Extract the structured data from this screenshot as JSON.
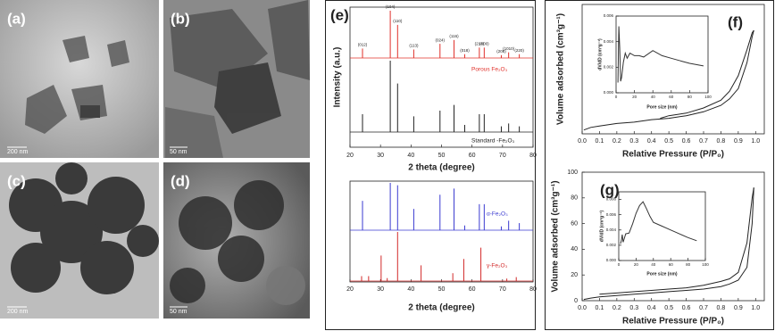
{
  "images": [
    {
      "label": "(a)",
      "scale_bar": "200 nm"
    },
    {
      "label": "(b)",
      "scale_bar": "50 nm"
    },
    {
      "label": "(c)",
      "scale_bar": "200 nm"
    },
    {
      "label": "(d)",
      "scale_bar": "50 nm"
    }
  ],
  "chart_data": [
    {
      "type": "stick",
      "panel_label": "(e)",
      "xlabel": "2 theta (degree)",
      "ylabel": "Intensity (a.u.)",
      "xlim": [
        20,
        80
      ],
      "xticks": [
        20,
        30,
        40,
        50,
        60,
        70,
        80
      ],
      "ylim": [
        0,
        100
      ],
      "series": [
        {
          "name": "Porous Fe₂O₃",
          "color": "#e0302a",
          "x": [
            24.1,
            33.2,
            35.6,
            40.9,
            49.5,
            54.1,
            57.6,
            62.4,
            64.0,
            69.6,
            72.0,
            75.5
          ],
          "values": [
            20,
            100,
            70,
            18,
            30,
            38,
            8,
            22,
            22,
            6,
            12,
            8
          ],
          "peak_labels": [
            "(012)",
            "(104)",
            "(110)",
            "(113)",
            "(024)",
            "(116)",
            "(018)",
            "(214)",
            "(300)",
            "(208)",
            "(1010)",
            "(220)"
          ]
        },
        {
          "name": "Standard -Fe₂O₃",
          "color": "#222222",
          "x": [
            24.1,
            33.2,
            35.6,
            40.9,
            49.5,
            54.1,
            57.6,
            62.4,
            64.0,
            69.6,
            72.0,
            75.5
          ],
          "values": [
            25,
            100,
            68,
            22,
            30,
            38,
            10,
            25,
            25,
            8,
            12,
            8
          ]
        }
      ]
    },
    {
      "type": "stick",
      "xlabel": "2 theta (degree)",
      "xlim": [
        20,
        80
      ],
      "xticks": [
        20,
        30,
        40,
        50,
        60,
        70,
        80
      ],
      "ylim": [
        0,
        100
      ],
      "series": [
        {
          "name": "α-Fe₂O₃",
          "color": "#3a3ad0",
          "x": [
            24.1,
            33.2,
            35.6,
            40.9,
            49.5,
            54.1,
            57.6,
            62.4,
            64.0,
            69.6,
            72.0,
            75.5
          ],
          "values": [
            62,
            100,
            95,
            45,
            75,
            88,
            10,
            55,
            55,
            8,
            20,
            15
          ]
        },
        {
          "name": "γ-Fe₂O₃",
          "color": "#d22a2a",
          "x": [
            23.8,
            26.1,
            30.2,
            32.2,
            35.6,
            43.3,
            53.7,
            57.3,
            62.9,
            71.4,
            74.5
          ],
          "values": [
            10,
            10,
            52,
            6,
            100,
            32,
            16,
            45,
            68,
            5,
            8
          ]
        }
      ]
    },
    {
      "type": "line",
      "panel_label": "(f)",
      "xlabel": "Relative Pressure (P/P₀)",
      "ylabel": "Volume adsorbed (cm³g⁻¹)",
      "xlim": [
        0,
        1.05
      ],
      "ylim": [
        0,
        100
      ],
      "xticks": [
        {
          "value": 0,
          "label": "0.0"
        },
        0.1,
        0.2,
        0.3,
        0.4,
        0.5,
        0.6,
        0.7,
        0.8,
        0.9,
        {
          "value": 1,
          "label": "1.0"
        }
      ],
      "series": [
        {
          "color": "#222222",
          "x": [
            0.01,
            0.05,
            0.1,
            0.2,
            0.3,
            0.4,
            0.5,
            0.6,
            0.7,
            0.8,
            0.85,
            0.9,
            0.95,
            0.98,
            0.99
          ],
          "values": [
            3,
            5,
            6,
            8,
            9,
            11,
            12,
            14,
            17,
            22,
            27,
            35,
            55,
            75,
            80
          ]
        },
        {
          "color": "#222222",
          "x": [
            0.99,
            0.98,
            0.95,
            0.9,
            0.85,
            0.8,
            0.7,
            0.6,
            0.5,
            0.45
          ],
          "values": [
            80,
            78,
            65,
            45,
            33,
            26,
            20,
            16,
            14,
            12
          ]
        }
      ]
    },
    {
      "type": "line",
      "inset": true,
      "xlabel": "Pore size (nm)",
      "ylabel": "dV/dD (cm³g⁻¹)",
      "xlim": [
        0,
        100
      ],
      "xticks": [
        0,
        20,
        40,
        60,
        80,
        100
      ],
      "ylim": [
        0,
        0.006
      ],
      "yticks": [
        {
          "value": 0,
          "label": "0.000"
        },
        0.002,
        0.004,
        {
          "value": 0.006,
          "label": "0.006"
        }
      ],
      "series": [
        {
          "color": "#333333",
          "x": [
            2,
            3,
            4,
            5,
            6,
            8,
            10,
            12,
            15,
            20,
            25,
            30,
            40,
            50,
            60,
            70,
            80,
            95
          ],
          "values": [
            0.0008,
            0.0052,
            0.0035,
            0.0009,
            0.0012,
            0.0024,
            0.0031,
            0.0027,
            0.0031,
            0.0029,
            0.0029,
            0.0028,
            0.0033,
            0.0029,
            0.0027,
            0.0025,
            0.0023,
            0.0021
          ]
        }
      ]
    },
    {
      "type": "line",
      "panel_label": "(g)",
      "xlabel": "Relative Pressure (P/P₀)",
      "ylabel": "Volume adsorbed (cm³g⁻¹)",
      "xlim": [
        0,
        1.05
      ],
      "ylim": [
        0,
        100
      ],
      "yticks": [
        0,
        20,
        40,
        60,
        80,
        100
      ],
      "xticks": [
        {
          "value": 0,
          "label": "0.0"
        },
        0.1,
        0.2,
        0.3,
        0.4,
        0.5,
        0.6,
        0.7,
        0.8,
        0.9,
        {
          "value": 1,
          "label": "1.0"
        }
      ],
      "series": [
        {
          "color": "#222222",
          "x": [
            0.01,
            0.05,
            0.1,
            0.2,
            0.3,
            0.4,
            0.5,
            0.6,
            0.7,
            0.8,
            0.85,
            0.9,
            0.95,
            0.98,
            0.99
          ],
          "values": [
            1,
            2,
            3,
            4,
            5,
            6,
            7,
            8,
            9,
            11,
            13,
            16,
            26,
            60,
            88
          ]
        },
        {
          "color": "#222222",
          "x": [
            0.99,
            0.98,
            0.95,
            0.9,
            0.85,
            0.8,
            0.7,
            0.6,
            0.5,
            0.4,
            0.3,
            0.2,
            0.1
          ],
          "values": [
            88,
            80,
            45,
            22,
            17,
            15,
            12,
            10,
            9,
            8,
            7,
            6,
            5
          ]
        }
      ]
    },
    {
      "type": "line",
      "inset": true,
      "xlabel": "Pore size (nm)",
      "ylabel": "dV/dD (cm³g⁻¹)",
      "xlim": [
        0,
        100
      ],
      "xticks": [
        0,
        20,
        40,
        60,
        80,
        100
      ],
      "ylim": [
        0,
        0.009
      ],
      "yticks": [
        {
          "value": 0,
          "label": "0.000"
        },
        0.002,
        0.004,
        0.006,
        0.008
      ],
      "series": [
        {
          "color": "#333333",
          "x": [
            2,
            3,
            4,
            5,
            8,
            12,
            16,
            20,
            24,
            28,
            32,
            36,
            40,
            50,
            60,
            70,
            80,
            90
          ],
          "values": [
            0.0022,
            0.0026,
            0.0034,
            0.0024,
            0.0035,
            0.0036,
            0.0048,
            0.0062,
            0.0072,
            0.0077,
            0.0068,
            0.0058,
            0.005,
            0.0045,
            0.004,
            0.0035,
            0.003,
            0.0026
          ]
        }
      ]
    }
  ]
}
